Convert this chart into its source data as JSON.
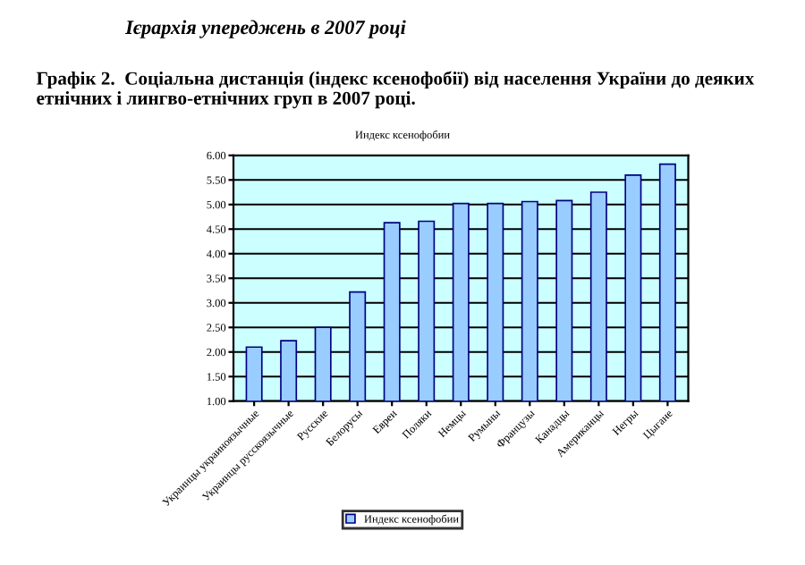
{
  "chart_data": {
    "type": "bar",
    "title": "Ієрархія упереджень в 2007 році",
    "subtitle": "Графік 2.  Соціальна дистанція (індекс ксенофобії) від населення України до деяких етнічних і лингво-етнічних груп в 2007 році.",
    "annotations": [
      "Индекс ксенофобии"
    ],
    "categories": [
      "Украинцы украиноязычные",
      "Украинцы русскоязычные",
      "Русские",
      "Белорусы",
      "Евреи",
      "Поляки",
      "Немцы",
      "Румыны",
      "Французы",
      "Канадцы",
      "Американцы",
      "Негры",
      "Цыгане"
    ],
    "series": [
      {
        "name": "Индекс ксенофобии",
        "color": "#99ccff",
        "values": [
          2.1,
          2.23,
          2.5,
          3.22,
          4.63,
          4.66,
          5.02,
          5.02,
          5.06,
          5.08,
          5.25,
          5.6,
          5.82
        ]
      }
    ],
    "ylim": [
      1,
      6
    ],
    "yticks": [
      {
        "value": 1,
        "label": "1.00"
      },
      {
        "value": 1.5,
        "label": "1.50"
      },
      {
        "value": 2,
        "label": "2.00"
      },
      {
        "value": 2.5,
        "label": "2.50"
      },
      {
        "value": 3,
        "label": "3.00"
      },
      {
        "value": 3.5,
        "label": "3.50"
      },
      {
        "value": 4,
        "label": "4.00"
      },
      {
        "value": 4.5,
        "label": "4.50"
      },
      {
        "value": 5,
        "label": "5.00"
      },
      {
        "value": 5.5,
        "label": "5.50"
      },
      {
        "value": 6,
        "label": "6.00"
      }
    ],
    "grid": "y",
    "legend": "bottom"
  }
}
